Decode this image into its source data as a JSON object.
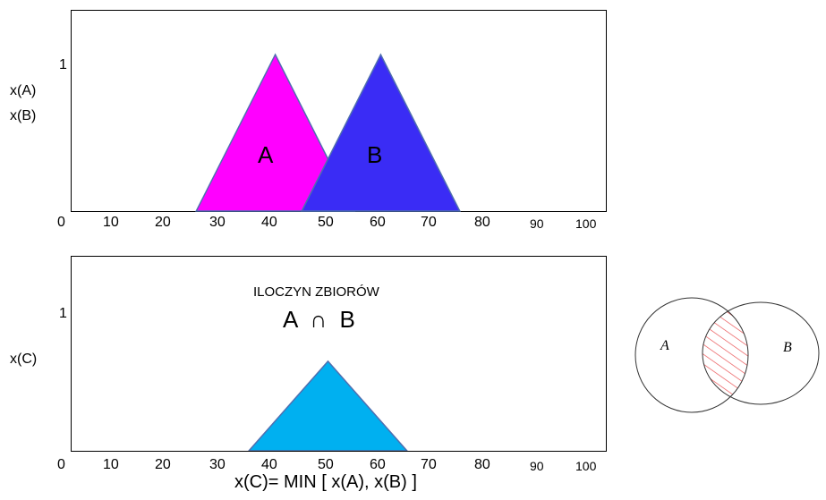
{
  "top_panel": {
    "y_labels": [
      "x(A)",
      "x(B)"
    ],
    "y_tick": "1",
    "x_ticks": [
      "0",
      "10",
      "20",
      "30",
      "40",
      "50",
      "60",
      "70",
      "80",
      "90",
      "100"
    ],
    "set_a_label": "A",
    "set_b_label": "B",
    "set_a_color": "#ff00ff",
    "set_b_color": "#3a2cf5"
  },
  "bottom_panel": {
    "y_label": "x(C)",
    "y_tick": "1",
    "x_ticks": [
      "0",
      "10",
      "20",
      "30",
      "40",
      "50",
      "60",
      "70",
      "80",
      "90",
      "100"
    ],
    "title": "ILOCZYN ZBIORÓW",
    "formula_set": "A  ∩  B",
    "result_color": "#00b0f0",
    "caption": "x(C)= MIN [ x(A), x(B) ]"
  },
  "venn": {
    "label_a": "A",
    "label_b": "B",
    "hatch_color": "#e8474a"
  },
  "chart_data": [
    {
      "type": "area",
      "ylabel": "x(A) x(B)",
      "xlim": [
        0,
        100
      ],
      "ylim": [
        0,
        1
      ],
      "series": [
        {
          "name": "A",
          "x": [
            25,
            40,
            55
          ],
          "y": [
            0,
            1,
            0
          ]
        },
        {
          "name": "B",
          "x": [
            45,
            60,
            75
          ],
          "y": [
            0,
            1,
            0
          ]
        }
      ]
    },
    {
      "type": "area",
      "title": "ILOCZYN ZBIORÓW",
      "ylabel": "x(C)",
      "xlabel": "x(C)= MIN [ x(A), x(B) ]",
      "xlim": [
        0,
        100
      ],
      "ylim": [
        0,
        1
      ],
      "series": [
        {
          "name": "A ∩ B",
          "x": [
            35,
            50,
            65
          ],
          "y": [
            0,
            0.65,
            0
          ]
        }
      ]
    }
  ]
}
